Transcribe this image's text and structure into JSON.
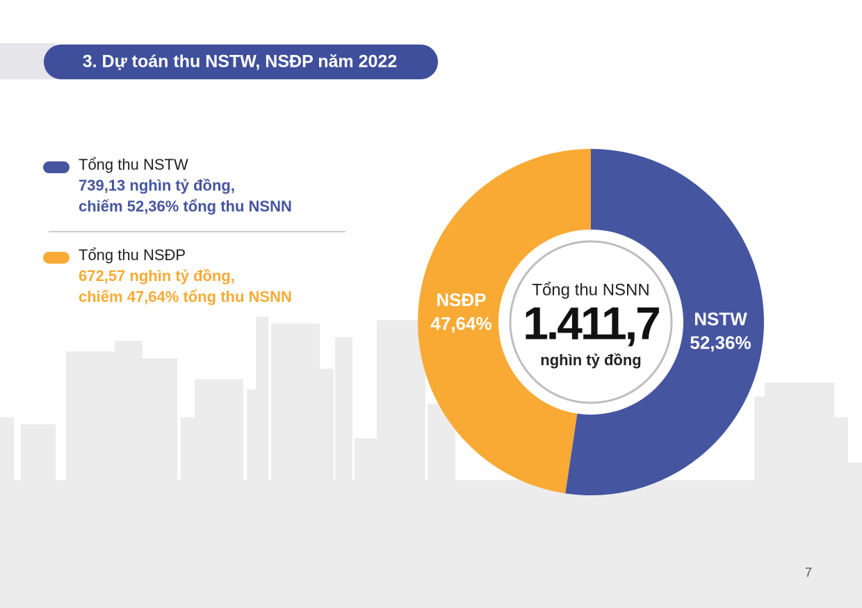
{
  "header": {
    "title": "3. Dự toán thu NSTW, NSĐP năm 2022"
  },
  "legend": [
    {
      "title": "Tổng thu NSTW",
      "amount": "739,13",
      "amount_unit": "nghìn tỷ đồng,",
      "share_prefix": "chiếm",
      "share": "52,36%",
      "share_suffix": "tổng thu NSNN"
    },
    {
      "title": "Tổng thu NSĐP",
      "amount": "672,57",
      "amount_unit": "nghìn tỷ đồng,",
      "share_prefix": "chiếm",
      "share": "47,64%",
      "share_suffix": "tổng thu NSNN"
    }
  ],
  "chart_data": {
    "type": "donut",
    "categories": [
      "NSTW",
      "NSĐP"
    ],
    "values": [
      52.36,
      47.64
    ],
    "value_labels": [
      "52,36%",
      "47,64%"
    ],
    "colors": [
      "#4555a0",
      "#f8aa35"
    ],
    "center": {
      "label": "Tổng thu NSNN",
      "value": "1.411,7",
      "unit": "nghìn tỷ đồng"
    }
  },
  "page_number": "7"
}
